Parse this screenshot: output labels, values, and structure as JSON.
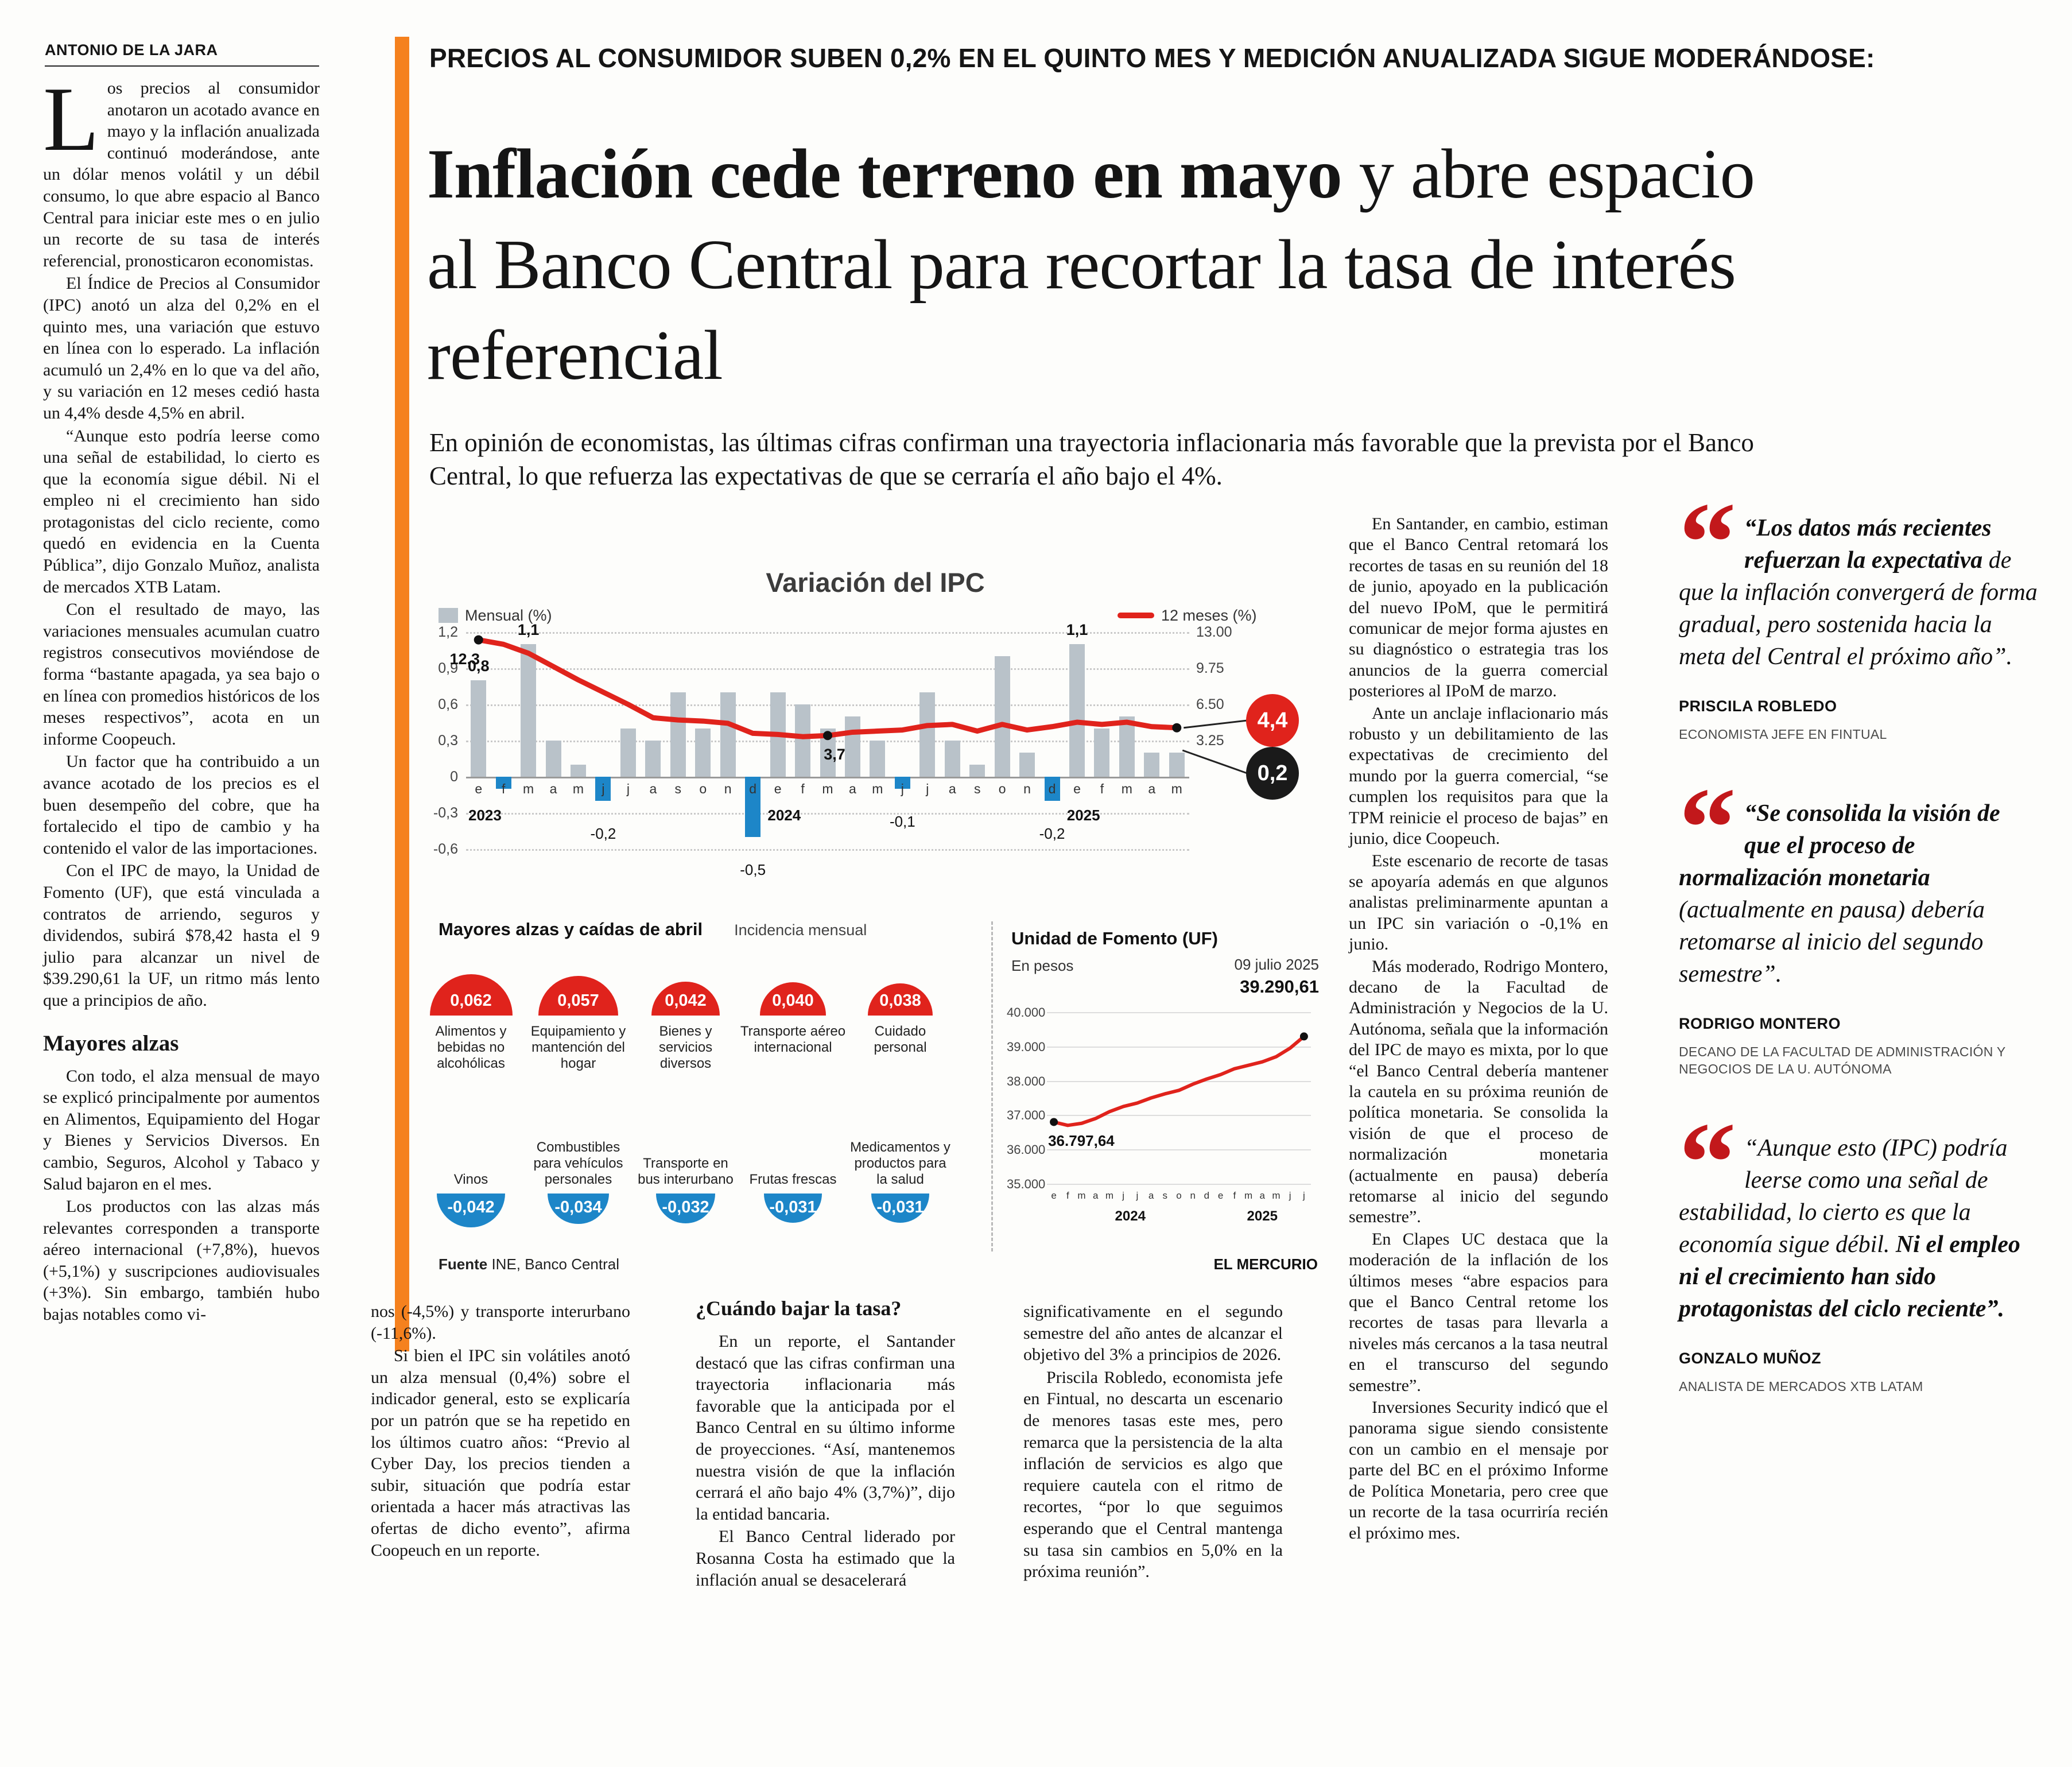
{
  "byline": "ANTONIO DE LA JARA",
  "kicker": "PRECIOS AL CONSUMIDOR SUBEN 0,2% EN EL QUINTO MES Y MEDICIÓN ANUALIZADA SIGUE MODERÁNDOSE:",
  "headline": {
    "bold": "Inflación cede terreno en mayo",
    "rest": " y abre espacio al Banco Central para recortar la tasa de interés referencial"
  },
  "deck": "En opinión de economistas, las últimas cifras confirman una trayectoria inflacionaria más favorable que la prevista por el Banco Central, lo que refuerza las expectativas de que se cerraría el año bajo el 4%.",
  "article": {
    "col1": {
      "dropcap": "L",
      "p1": "os precios al consumidor anotaron un acotado avance en mayo y la inflación anualizada continuó moderándose, ante un dólar menos volátil y un débil consumo, lo que abre espacio al Banco Central para iniciar este mes o en julio un recorte de su tasa de interés referencial, pronosticaron economistas.",
      "p2": "El Índice de Precios al Consumidor (IPC) anotó un alza del 0,2% en el quinto mes, una variación que estuvo en línea con lo esperado. La inflación acumuló un 2,4% en lo que va del año, y su variación en 12 meses cedió hasta un 4,4% desde 4,5% en abril.",
      "p3": "“Aunque esto podría leerse como una señal de estabilidad, lo cierto es que la economía sigue débil. Ni el empleo ni el crecimiento han sido protagonistas del ciclo reciente, como quedó en evidencia en la Cuenta Pública”, dijo Gonzalo Muñoz, analista de mercados XTB Latam.",
      "p4": "Con el resultado de mayo, las variaciones mensuales acumulan cuatro registros consecutivos moviéndose de forma “bastante apagada, ya sea bajo o en línea con promedios históricos de los meses respectivos”, acota en un informe Coopeuch.",
      "p5": "Un factor que ha contribuido a un avance acotado de los precios es el buen desempeño del cobre, que ha fortalecido el tipo de cambio y ha contenido el valor de las importaciones.",
      "p6": "Con el IPC de mayo, la Unidad de Fomento (UF), que está vinculada a contratos de arriendo, seguros y dividendos, subirá $78,42 hasta el 9 julio para alcanzar un nivel de $39.290,61 la UF, un ritmo más lento que a principios de año.",
      "subhead": "Mayores alzas",
      "p7": "Con todo, el alza mensual de mayo se explicó principalmente por aumentos en Alimentos, Equipamiento del Hogar y Bienes y Servicios Diversos. En cambio, Seguros, Alcohol y Tabaco y Salud bajaron en el mes.",
      "p8": "Los productos con las alzas más relevantes corresponden a transporte aéreo internacional (+7,8%), huevos (+5,1%) y suscripciones audiovisuales (+3%). Sin embargo, también hubo bajas notables como vi-"
    },
    "col2": {
      "p1": "nos (-4,5%) y transporte interurbano (-11,6%).",
      "p2": "Si bien el IPC sin volátiles anotó un alza mensual (0,4%) sobre el indicador general, esto se explicaría por un patrón que se ha repetido en los últimos cuatro años: “Previo al Cyber Day, los precios tienden a subir, situación que podría estar orientada a hacer más atractivas las ofertas de dicho evento”, afirma Coopeuch en un reporte."
    },
    "col3": {
      "head": "¿Cuándo bajar la tasa?",
      "p1": "En un reporte, el Santander destacó que las cifras confirman una trayectoria inflacionaria más favorable que la anticipada por el Banco Central en su último informe de proyecciones. “Así, mantenemos nuestra visión de que la inflación cerrará el año bajo 4% (3,7%)”, dijo la entidad bancaria.",
      "p2": "El Banco Central liderado por Rosanna Costa ha estimado que la inflación anual se desacelerará"
    },
    "col4": {
      "p1": "significativamente en el segundo semestre del año antes de alcanzar el objetivo del 3% a principios de 2026.",
      "p2": "Priscila Robledo, economista jefe en Fintual, no descarta un escenario de menores tasas este mes, pero remarca que la persistencia de la alta inflación de servicios es algo que requiere cautela con el ritmo de recortes, “por lo que seguimos esperando que el Central mantenga su tasa sin cambios en 5,0% en la próxima reunión”."
    },
    "col5": {
      "p1": "En Santander, en cambio, estiman que el Banco Central retomará los recortes de tasas en su reunión del 18 de junio, apoyado en la publicación del nuevo IPoM, que le permitirá comunicar de mejor forma ajustes en su diagnóstico o estrategia tras los anuncios de la guerra comercial posteriores al IPoM de marzo.",
      "p2": "Ante un anclaje inflacionario más robusto y un debilitamiento de las expectativas de crecimiento del mundo por la guerra comercial, “se cumplen los requisitos para que la TPM reinicie el proceso de bajas” en junio, dice Coopeuch.",
      "p3": "Este escenario de recorte de tasas se apoyaría además en que algunos analistas preliminarmente apuntan a un IPC sin variación o -0,1% en junio.",
      "p4": "Más moderado, Rodrigo Montero, decano de la Facultad de Administración y Negocios de la U. Autónoma, señala que la información del IPC de mayo es mixta, por lo que “el Banco Central debería mantener la cautela en su próxima reunión de política monetaria. Se consolida la visión de que el proceso de normalización monetaria (actualmente en pausa) debería retomarse al inicio del segundo semestre”.",
      "p5": "En Clapes UC destaca que la moderación de la inflación de los últimos meses “abre espacios para que el Banco Central retome los recortes de tasas para llevarla a niveles más cercanos a la tasa neutral en el transcurso del segundo semestre”.",
      "p6": "Inversiones Security indicó que el panorama sigue siendo consistente con un cambio en el mensaje por parte del BC en el próximo Informe de Política Monetaria, pero cree que un recorte de la tasa ocurriría recién el próximo mes."
    }
  },
  "quotes": [
    {
      "segments": [
        {
          "text": "“Los datos más recientes refuerzan la expectativa ",
          "bold": true
        },
        {
          "text": "de que la inflación convergerá de forma gradual, pero sostenida hacia la meta del Central el próximo año”.",
          "bold": false
        }
      ],
      "name": "PRISCILA ROBLEDO",
      "role": "ECONOMISTA JEFE EN FINTUAL"
    },
    {
      "segments": [
        {
          "text": "“Se consolida la visión de que el proceso de normalización monetaria ",
          "bold": true
        },
        {
          "text": "(actualmente en pausa) debería retomarse al inicio del segundo semestre”.",
          "bold": false
        }
      ],
      "name": "RODRIGO MONTERO",
      "role": "DECANO DE LA FACULTAD DE ADMINISTRACIÓN Y NEGOCIOS DE LA U. AUTÓNOMA"
    },
    {
      "segments": [
        {
          "text": "“Aunque esto (IPC) podría leerse como una señal de estabilidad, lo cierto es que la economía sigue débil. ",
          "bold": false
        },
        {
          "text": "Ni el empleo ni el crecimiento han sido protagonistas del ciclo reciente”.",
          "bold": true
        }
      ],
      "name": "GONZALO MUÑOZ",
      "role": "ANALISTA DE MERCADOS XTB LATAM"
    }
  ],
  "graphic": {
    "source_bold": "Fuente",
    "source_rest": " INE, Banco Central",
    "credit": "EL MERCURIO"
  },
  "chart_data": [
    {
      "id": "ipc",
      "type": "bar+line",
      "title": "Variación del IPC",
      "legend": [
        {
          "label": "Mensual (%)",
          "type": "bar",
          "color": "#B9C2C9"
        },
        {
          "label": "12 meses (%)",
          "type": "line",
          "color": "#E0231C"
        }
      ],
      "months": [
        "e",
        "f",
        "m",
        "a",
        "m",
        "j",
        "j",
        "a",
        "s",
        "o",
        "n",
        "d",
        "e",
        "f",
        "m",
        "a",
        "m",
        "j",
        "j",
        "a",
        "s",
        "o",
        "n",
        "d",
        "e",
        "f",
        "m",
        "a",
        "m"
      ],
      "years": [
        {
          "label": "2023",
          "start": 0
        },
        {
          "label": "2024",
          "start": 12
        },
        {
          "label": "2025",
          "start": 24
        }
      ],
      "monthly": [
        0.8,
        -0.1,
        1.1,
        0.3,
        0.1,
        -0.2,
        0.4,
        0.3,
        0.7,
        0.4,
        0.7,
        -0.5,
        0.7,
        0.6,
        0.4,
        0.5,
        0.3,
        -0.1,
        0.7,
        0.3,
        0.1,
        1.0,
        0.2,
        -0.2,
        1.1,
        0.4,
        0.5,
        0.2,
        0.2
      ],
      "yoy": [
        12.3,
        11.9,
        11.1,
        9.9,
        8.7,
        7.6,
        6.5,
        5.3,
        5.1,
        5.0,
        4.8,
        3.9,
        3.8,
        3.6,
        3.7,
        4.0,
        4.1,
        4.2,
        4.6,
        4.7,
        4.1,
        4.7,
        4.2,
        4.5,
        4.9,
        4.7,
        4.9,
        4.5,
        4.4
      ],
      "left_axis": {
        "ticks": [
          "1,2",
          "0,9",
          "0,6",
          "0,3",
          "0",
          "-0,3",
          "-0,6"
        ],
        "values": [
          1.2,
          0.9,
          0.6,
          0.3,
          0,
          -0.3,
          -0.6
        ],
        "min": -0.6,
        "max": 1.2
      },
      "right_axis": {
        "ticks": [
          "13.00",
          "9.75",
          "6.50",
          "3.25"
        ],
        "values": [
          13,
          9.75,
          6.5,
          3.25
        ],
        "max_value": 13
      },
      "annotations_bar": [
        {
          "i": 0,
          "text": "0,8"
        },
        {
          "i": 2,
          "text": "1,1"
        },
        {
          "i": 5,
          "text": "-0,2"
        },
        {
          "i": 11,
          "text": "-0,5"
        },
        {
          "i": 17,
          "text": "-0,1"
        },
        {
          "i": 23,
          "text": "-0,2"
        },
        {
          "i": 24,
          "text": "1,1"
        }
      ],
      "annotations_line": [
        {
          "i": 0,
          "text": "12,3",
          "dot": true
        },
        {
          "i": 14,
          "text": "3,7",
          "dot": true
        }
      ],
      "end_badges": [
        {
          "text": "4,4",
          "color": "#E0231C",
          "series": "12 meses"
        },
        {
          "text": "0,2",
          "color": "#1a1a1a",
          "series": "Mensual"
        }
      ],
      "bar_color": "#B9C2C9",
      "bar_negative_color": "#1D86C8",
      "line_color": "#E0231C"
    },
    {
      "id": "incidencia",
      "type": "semicircle-bar",
      "title_bold": "Mayores alzas y caídas de abril",
      "title_light": "Incidencia mensual",
      "max_value": 0.062,
      "up": {
        "color": "#E0231C",
        "items": [
          {
            "value": "0,062",
            "v": 0.062,
            "label": "Alimentos y bebidas no alcohólicas"
          },
          {
            "value": "0,057",
            "v": 0.057,
            "label": "Equipamiento y mantención del hogar"
          },
          {
            "value": "0,042",
            "v": 0.042,
            "label": "Bienes y servicios diversos"
          },
          {
            "value": "0,040",
            "v": 0.04,
            "label": "Transporte aéreo internacional"
          },
          {
            "value": "0,038",
            "v": 0.038,
            "label": "Cuidado personal"
          }
        ]
      },
      "down": {
        "color": "#1D86C8",
        "items": [
          {
            "value": "-0,042",
            "v": 0.042,
            "label": "Vinos"
          },
          {
            "value": "-0,034",
            "v": 0.034,
            "label": "Combustibles para vehículos personales"
          },
          {
            "value": "-0,032",
            "v": 0.032,
            "label": "Transporte en bus interurbano"
          },
          {
            "value": "-0,031",
            "v": 0.031,
            "label": "Frutas frescas"
          },
          {
            "value": "-0,031",
            "v": 0.031,
            "label": "Medicamentos y productos para la salud"
          }
        ]
      }
    },
    {
      "id": "uf",
      "type": "line",
      "title": "Unidad de Fomento (UF)",
      "subtitle": "En pesos",
      "date_label": "09 julio 2025",
      "end_value": "39.290,61",
      "start_value": "36.797,64",
      "y_ticks": [
        "40.000",
        "39.000",
        "38.000",
        "37.000",
        "36.000",
        "35.000"
      ],
      "ylim": [
        35000,
        40000
      ],
      "months": [
        "e",
        "f",
        "m",
        "a",
        "m",
        "j",
        "j",
        "a",
        "s",
        "o",
        "n",
        "d",
        "e",
        "f",
        "m",
        "a",
        "m",
        "j",
        "j"
      ],
      "years": [
        {
          "label": "2024",
          "start": 0
        },
        {
          "label": "2025",
          "start": 12
        }
      ],
      "values": [
        36798,
        36700,
        36760,
        36900,
        37100,
        37250,
        37350,
        37500,
        37620,
        37720,
        37900,
        38050,
        38180,
        38350,
        38450,
        38550,
        38700,
        38950,
        39291
      ],
      "line_color": "#E0231C"
    }
  ]
}
